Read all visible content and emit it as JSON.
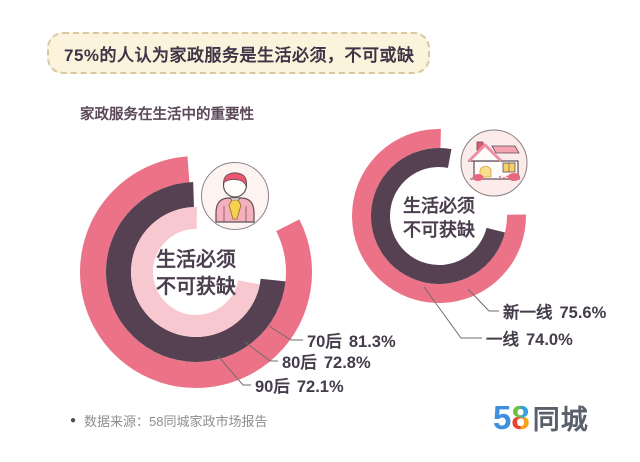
{
  "banner": {
    "text": "75%的人认为家政服务是生活必须，不可或缺",
    "bg_color": "#FBF3DC",
    "border_color": "#D8C8A2"
  },
  "chart_title": "家政服务在生活中的重要性",
  "chart_data": [
    {
      "type": "donut",
      "center_line1": "生活必须",
      "center_line2": "不可获缺",
      "icon": "person-icon",
      "legend_position": "bottom-right-leader-lines",
      "rings": [
        {
          "name": "70后",
          "value": 81.3,
          "pct": "81.3%",
          "color": "#EC7287",
          "start_angle": 63
        },
        {
          "name": "80后",
          "value": 72.8,
          "pct": "72.8%",
          "color": "#564152",
          "start_angle": 96
        },
        {
          "name": "90后",
          "value": 72.1,
          "pct": "72.1%",
          "color": "#F7C8D0",
          "start_angle": 101
        }
      ]
    },
    {
      "type": "donut",
      "center_line1": "生活必须",
      "center_line2": "不可获缺",
      "icon": "house-icon",
      "legend_position": "bottom-right-leader-lines",
      "rings": [
        {
          "name": "新一线",
          "value": 75.6,
          "pct": "75.6%",
          "color": "#EC7287",
          "start_angle": 89
        },
        {
          "name": "一线",
          "value": 74.0,
          "pct": "74.0%",
          "color": "#564152",
          "start_angle": 104
        }
      ]
    }
  ],
  "source": {
    "bullet": "●",
    "text": "数据来源：58同城家政市场报告"
  },
  "logo": {
    "five": "5",
    "eight": "8",
    "suffix": "同城"
  },
  "colors": {
    "pink": "#EC7287",
    "plum": "#564152",
    "light_pink": "#F7C8D0",
    "yellow": "#F6D14E",
    "leader_line": "#6E6E6E"
  }
}
